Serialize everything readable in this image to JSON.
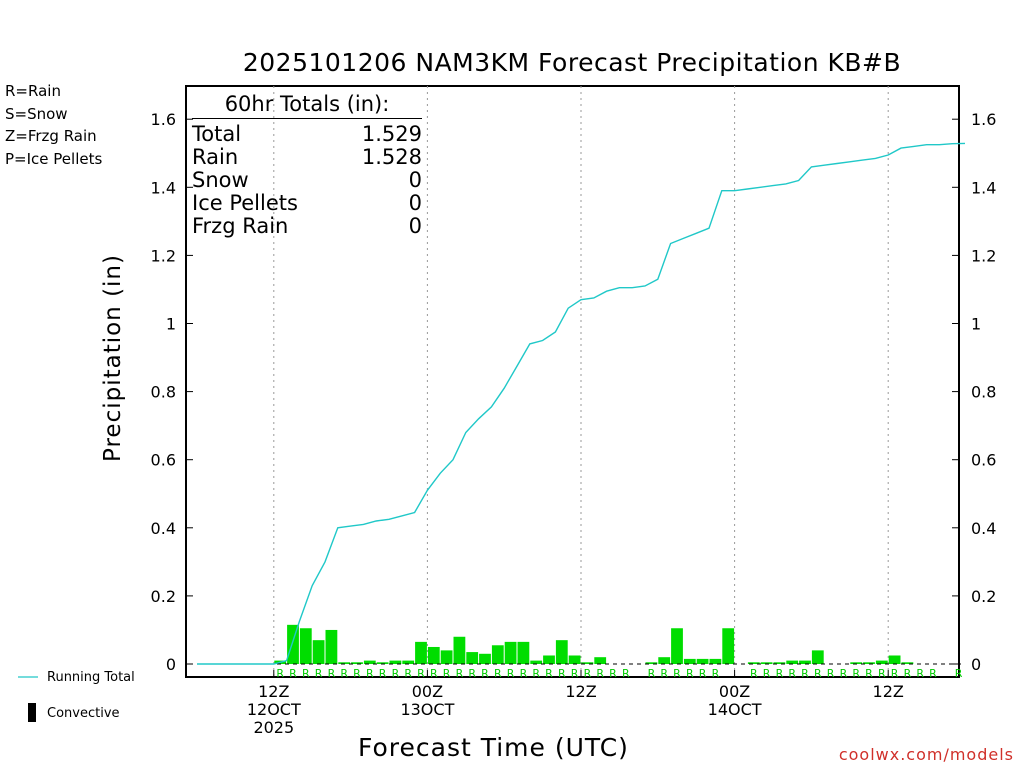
{
  "chart_data": {
    "type": "bar+line",
    "title": "2025101206 NAM3KM Forecast Precipitation KB#B",
    "xlabel": "Forecast Time (UTC)",
    "ylabel": "Precipitation (in)",
    "ylim": [
      0,
      1.65
    ],
    "y_ticks": [
      0,
      0.2,
      0.4,
      0.6,
      0.8,
      1,
      1.2,
      1.4,
      1.6
    ],
    "y_tick_labels": [
      "0",
      "0.2",
      "0.4",
      "0.6",
      "0.8",
      "1",
      "1.2",
      "1.4",
      "1.6"
    ],
    "x_unit": "forecast hour",
    "xlim": [
      0,
      60
    ],
    "x_ticks": [
      {
        "hour": 6,
        "lines": [
          "12Z",
          "12OCT",
          "2025"
        ]
      },
      {
        "hour": 18,
        "lines": [
          "00Z",
          "13OCT"
        ]
      },
      {
        "hour": 30,
        "lines": [
          "12Z"
        ]
      },
      {
        "hour": 42,
        "lines": [
          "00Z",
          "14OCT"
        ]
      },
      {
        "hour": 54,
        "lines": [
          "12Z"
        ]
      }
    ],
    "series": [
      {
        "name": "Hourly Precipitation (Rain)",
        "type": "bar",
        "color": "#00dd00",
        "x": [
          7,
          8,
          9,
          10,
          11,
          12,
          13,
          14,
          15,
          16,
          17,
          18,
          19,
          20,
          21,
          22,
          23,
          24,
          25,
          26,
          27,
          28,
          29,
          30,
          31,
          32,
          33,
          34,
          35,
          36,
          37,
          38,
          39,
          40,
          41,
          42,
          43,
          44,
          45,
          46,
          47,
          48,
          49,
          50,
          51,
          52,
          53,
          54,
          55,
          56,
          57,
          58,
          59,
          60
        ],
        "values": [
          0.01,
          0.115,
          0.105,
          0.07,
          0.1,
          0.005,
          0.005,
          0.01,
          0.005,
          0.01,
          0.01,
          0.065,
          0.05,
          0.04,
          0.08,
          0.035,
          0.03,
          0.055,
          0.065,
          0.065,
          0.01,
          0.025,
          0.07,
          0.025,
          0.005,
          0.02,
          0,
          0,
          0,
          0.005,
          0.02,
          0.105,
          0.015,
          0.015,
          0.015,
          0.105,
          0,
          0.005,
          0.005,
          0.005,
          0.01,
          0.01,
          0.04,
          0,
          0,
          0.005,
          0.005,
          0.01,
          0.025,
          0.005,
          0,
          0,
          0,
          0
        ]
      },
      {
        "name": "Running Total",
        "type": "line",
        "color": "#20c8c8",
        "x": [
          0,
          6,
          7,
          8,
          9,
          10,
          11,
          12,
          13,
          14,
          15,
          16,
          17,
          18,
          19,
          20,
          21,
          22,
          23,
          24,
          25,
          26,
          27,
          28,
          29,
          30,
          31,
          32,
          33,
          34,
          35,
          36,
          37,
          38,
          39,
          40,
          41,
          42,
          43,
          44,
          45,
          46,
          47,
          48,
          49,
          50,
          51,
          52,
          53,
          54,
          55,
          56,
          57,
          58,
          59,
          60
        ],
        "values": [
          0,
          0,
          0.01,
          0.125,
          0.23,
          0.3,
          0.4,
          0.405,
          0.41,
          0.42,
          0.425,
          0.435,
          0.445,
          0.51,
          0.56,
          0.6,
          0.68,
          0.72,
          0.755,
          0.81,
          0.875,
          0.94,
          0.95,
          0.975,
          1.045,
          1.07,
          1.075,
          1.095,
          1.105,
          1.105,
          1.11,
          1.13,
          1.235,
          1.25,
          1.265,
          1.28,
          1.39,
          1.39,
          1.395,
          1.4,
          1.405,
          1.41,
          1.42,
          1.46,
          1.465,
          1.47,
          1.475,
          1.48,
          1.485,
          1.495,
          1.515,
          1.52,
          1.525,
          1.525,
          1.528,
          1.529
        ]
      }
    ],
    "ptype_x": [
      7,
      8,
      9,
      10,
      11,
      12,
      13,
      14,
      15,
      16,
      17,
      18,
      19,
      20,
      21,
      22,
      23,
      24,
      25,
      26,
      27,
      28,
      29,
      30,
      31,
      32,
      33,
      34,
      36,
      37,
      38,
      39,
      40,
      41,
      44,
      45,
      46,
      47,
      48,
      49,
      50,
      51,
      52,
      53,
      54,
      55,
      56,
      57,
      58,
      60
    ],
    "ptype_letter": "R",
    "legend": {
      "types": [
        {
          "text": "R=Rain",
          "color": "#00cc00"
        },
        {
          "text": "S=Snow",
          "color": "#3040e0"
        },
        {
          "text": "Z=Frzg Rain",
          "color": "#f08020"
        },
        {
          "text": "P=Ice Pellets",
          "color": "#e0208a"
        }
      ],
      "running_total": "Running Total",
      "convective": "Convective"
    },
    "totals": {
      "header": "60hr Totals (in):",
      "rows": [
        {
          "label": "Total",
          "value": "1.529"
        },
        {
          "label": "Rain",
          "value": "1.528"
        },
        {
          "label": "Snow",
          "value": "0"
        },
        {
          "label": "Ice Pellets",
          "value": "0"
        },
        {
          "label": "Frzg Rain",
          "value": "0"
        }
      ]
    },
    "credit": "coolwx.com/models"
  }
}
